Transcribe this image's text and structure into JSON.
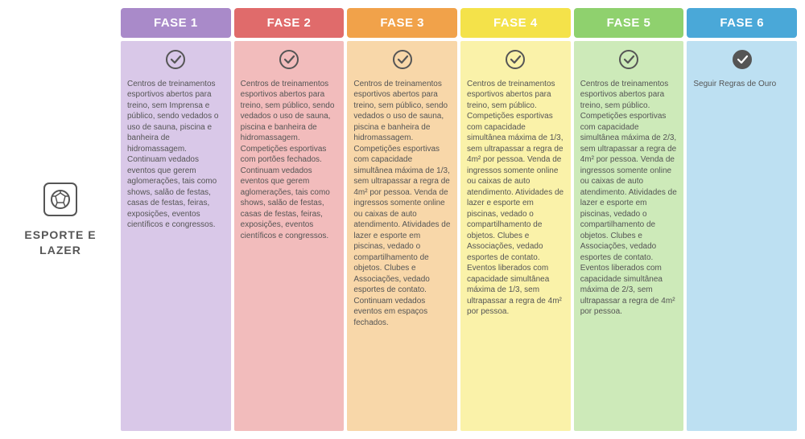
{
  "category": {
    "label": "ESPORTE E LAZER"
  },
  "phases": [
    {
      "label": "FASE 1",
      "header_color": "#a98ac9",
      "body_color": "#d9c8e8",
      "check_fill": "none",
      "check_stroke": "#555555",
      "tick_stroke": "#555555",
      "text": "Centros de treinamentos esportivos abertos para treino, sem Imprensa e público, sendo vedados o uso de sauna, piscina e banheira de hidromassagem. Continuam vedados eventos que gerem aglomerações, tais como shows, salão de festas, casas de festas, feiras, exposições, eventos científicos e congressos."
    },
    {
      "label": "FASE 2",
      "header_color": "#e06b6b",
      "body_color": "#f2bcbc",
      "check_fill": "none",
      "check_stroke": "#555555",
      "tick_stroke": "#555555",
      "text": "Centros de treinamentos esportivos abertos para treino, sem público, sendo vedados o uso de sauna, piscina e banheira de hidromassagem. Competições esportivas com portões fechados. Continuam vedados eventos que gerem aglomerações, tais como shows, salão de festas, casas de festas, feiras, exposições, eventos científicos e congressos."
    },
    {
      "label": "FASE 3",
      "header_color": "#f1a24a",
      "body_color": "#f8d7a9",
      "check_fill": "none",
      "check_stroke": "#555555",
      "tick_stroke": "#555555",
      "text": "Centros de treinamentos esportivos abertos para treino, sem público, sendo vedados o uso de sauna, piscina e banheira de hidromassagem. Competições esportivas com capacidade simultânea máxima de 1/3, sem ultrapassar a regra de 4m² por pessoa. Venda de ingressos somente online ou caixas de auto atendimento. Atividades de lazer e esporte em piscinas, vedado o compartilhamento de objetos. Clubes e Associações, vedado esportes de contato. Continuam vedados eventos em espaços fechados."
    },
    {
      "label": "FASE 4",
      "header_color": "#f4e24a",
      "body_color": "#faf2a9",
      "check_fill": "none",
      "check_stroke": "#555555",
      "tick_stroke": "#555555",
      "text": "Centros de treinamentos esportivos abertos para treino, sem público. Competições esportivas com capacidade simultânea máxima de 1/3, sem ultrapassar a regra de 4m² por pessoa. Venda de ingressos somente online ou caixas de auto atendimento. Atividades de lazer e esporte em piscinas, vedado o compartilhamento de objetos. Clubes e Associações, vedado esportes de contato. Eventos liberados com capacidade simultânea máxima de 1/3, sem ultrapassar a regra de 4m² por pessoa."
    },
    {
      "label": "FASE 5",
      "header_color": "#8fd16e",
      "body_color": "#cdeab9",
      "check_fill": "none",
      "check_stroke": "#555555",
      "tick_stroke": "#555555",
      "text": "Centros de treinamentos esportivos abertos para treino, sem público. Competições esportivas com capacidade simultânea máxima de 2/3, sem ultrapassar a regra de 4m² por pessoa. Venda de ingressos somente online ou caixas de auto atendimento. Atividades de lazer e esporte em piscinas, vedado o compartilhamento de objetos. Clubes e Associações, vedado esportes de contato. Eventos liberados com capacidade simultânea máxima de 2/3, sem ultrapassar a regra de 4m² por pessoa."
    },
    {
      "label": "FASE 6",
      "header_color": "#4aa8d8",
      "body_color": "#bde0f2",
      "check_fill": "#555555",
      "check_stroke": "#555555",
      "tick_stroke": "#ffffff",
      "text": "Seguir Regras de Ouro"
    }
  ]
}
